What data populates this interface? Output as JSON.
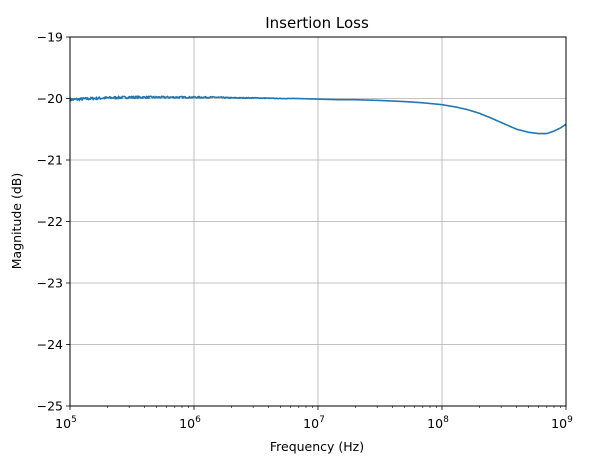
{
  "chart_data": {
    "type": "line",
    "title": "Insertion Loss",
    "xlabel": "Frequency (Hz)",
    "ylabel": "Magnitude (dB)",
    "xscale": "log",
    "xlim": [
      100000,
      1000000000
    ],
    "ylim": [
      -25,
      -19
    ],
    "grid": true,
    "x_ticks": [
      {
        "value": 100000,
        "base": "10",
        "exp": "5"
      },
      {
        "value": 1000000,
        "base": "10",
        "exp": "6"
      },
      {
        "value": 10000000,
        "base": "10",
        "exp": "7"
      },
      {
        "value": 100000000,
        "base": "10",
        "exp": "8"
      },
      {
        "value": 1000000000,
        "base": "10",
        "exp": "9"
      }
    ],
    "y_ticks": [
      {
        "value": -25,
        "label": "−25"
      },
      {
        "value": -24,
        "label": "−24"
      },
      {
        "value": -23,
        "label": "−23"
      },
      {
        "value": -22,
        "label": "−22"
      },
      {
        "value": -21,
        "label": "−21"
      },
      {
        "value": -20,
        "label": "−20"
      },
      {
        "value": -19,
        "label": "−19"
      }
    ],
    "series": [
      {
        "color": "#1f77b4",
        "points": [
          [
            100000,
            -20.02
          ],
          [
            150000,
            -20.0
          ],
          [
            200000,
            -19.99
          ],
          [
            300000,
            -19.98
          ],
          [
            500000,
            -19.98
          ],
          [
            700000,
            -19.98
          ],
          [
            1000000,
            -19.98
          ],
          [
            1500000,
            -19.98
          ],
          [
            2000000,
            -19.99
          ],
          [
            3000000,
            -19.99
          ],
          [
            5000000,
            -20.0
          ],
          [
            7000000,
            -20.0
          ],
          [
            10000000,
            -20.01
          ],
          [
            15000000,
            -20.02
          ],
          [
            20000000,
            -20.02
          ],
          [
            30000000,
            -20.03
          ],
          [
            50000000,
            -20.05
          ],
          [
            70000000,
            -20.07
          ],
          [
            100000000,
            -20.1
          ],
          [
            130000000,
            -20.14
          ],
          [
            160000000,
            -20.18
          ],
          [
            200000000,
            -20.24
          ],
          [
            250000000,
            -20.32
          ],
          [
            300000000,
            -20.39
          ],
          [
            400000000,
            -20.5
          ],
          [
            500000000,
            -20.55
          ],
          [
            600000000,
            -20.57
          ],
          [
            700000000,
            -20.57
          ],
          [
            800000000,
            -20.53
          ],
          [
            900000000,
            -20.48
          ],
          [
            1000000000,
            -20.42
          ]
        ]
      }
    ]
  }
}
